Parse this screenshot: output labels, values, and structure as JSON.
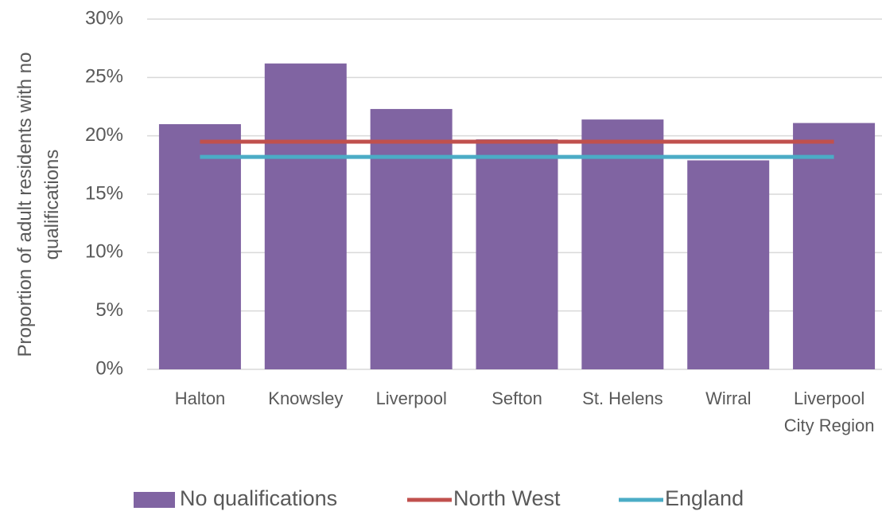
{
  "chart_data": {
    "type": "bar",
    "y_label": "Proportion of adult residents with no qualifications",
    "categories": [
      "Halton",
      "Knowsley",
      "Liverpool",
      "Sefton",
      "St. Helens",
      "Wirral",
      "Liverpool City Region"
    ],
    "series": [
      {
        "name": "No qualifications",
        "type": "bar",
        "color": "#8064a2",
        "values": [
          21.0,
          26.2,
          22.3,
          19.7,
          21.4,
          17.9,
          21.1
        ]
      },
      {
        "name": "North West",
        "type": "line",
        "color": "#c0504d",
        "values": [
          19.5,
          19.5,
          19.5,
          19.5,
          19.5,
          19.5,
          19.5
        ]
      },
      {
        "name": "England",
        "type": "line",
        "color": "#4bacc6",
        "values": [
          18.2,
          18.2,
          18.2,
          18.2,
          18.2,
          18.2,
          18.2
        ]
      }
    ],
    "ylim": [
      0,
      30
    ],
    "yticks": [
      {
        "value": 0,
        "label": "0%"
      },
      {
        "value": 5,
        "label": "5%"
      },
      {
        "value": 10,
        "label": "10%"
      },
      {
        "value": 15,
        "label": "15%"
      },
      {
        "value": 20,
        "label": "20%"
      },
      {
        "value": 25,
        "label": "25%"
      },
      {
        "value": 30,
        "label": "30%"
      }
    ],
    "grid": true,
    "legend": "bottom"
  }
}
